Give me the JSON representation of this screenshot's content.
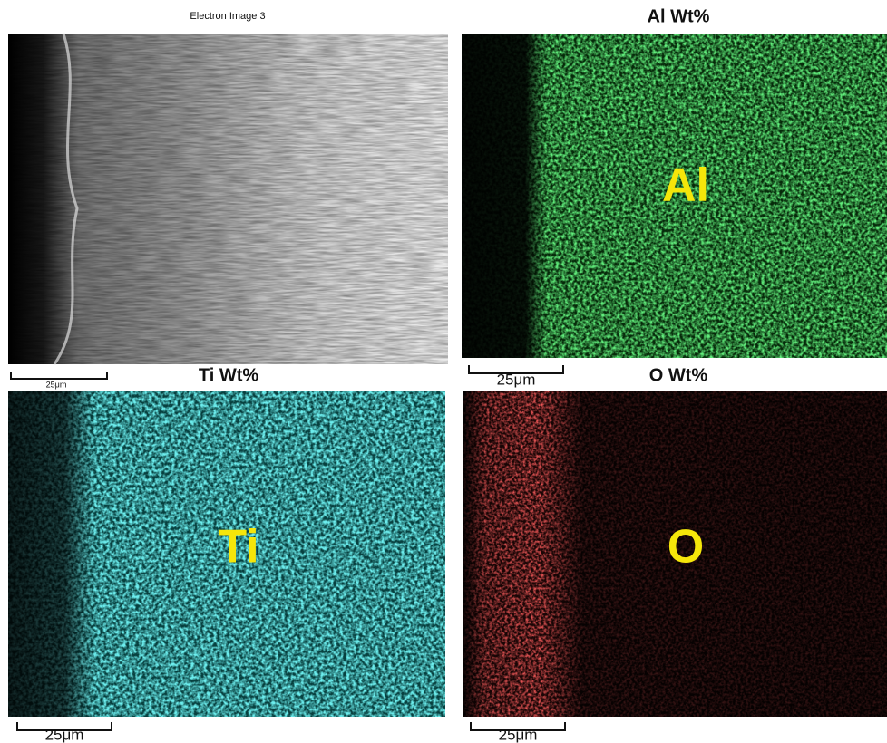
{
  "panels": [
    {
      "title": "Electron Image 3",
      "scale_bar": "25μm"
    },
    {
      "title": "Al Wt%",
      "label": "Al",
      "scale_bar": "25μm"
    },
    {
      "title": "Ti Wt%",
      "label": "Ti",
      "scale_bar": "25μm"
    },
    {
      "title": "O Wt%",
      "label": "O",
      "scale_bar": "25μm"
    }
  ]
}
